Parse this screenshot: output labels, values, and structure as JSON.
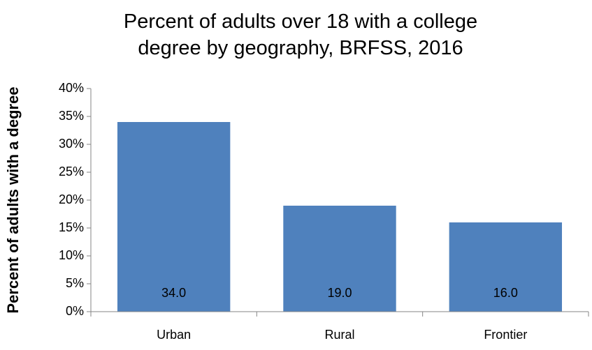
{
  "chart_data": {
    "type": "bar",
    "title": "Percent of adults over 18 with a college degree by geography, BRFSS, 2016",
    "y_label": "Percent of adults with a degree",
    "categories": [
      "Urban",
      "Rural",
      "Frontier"
    ],
    "values": [
      34,
      19,
      16
    ],
    "value_labels": [
      "34.0",
      "19.0",
      "16.0"
    ],
    "color": "#4f81bd",
    "ylim": [
      0,
      40
    ],
    "yticks": [
      {
        "value": 0,
        "label": "0%"
      },
      {
        "value": 5,
        "label": "5%"
      },
      {
        "value": 10,
        "label": "10%"
      },
      {
        "value": 15,
        "label": "15%"
      },
      {
        "value": 20,
        "label": "20%"
      },
      {
        "value": 25,
        "label": "25%"
      },
      {
        "value": 30,
        "label": "30%"
      },
      {
        "value": 35,
        "label": "35%"
      },
      {
        "value": 40,
        "label": "40%"
      }
    ],
    "grid": false
  }
}
